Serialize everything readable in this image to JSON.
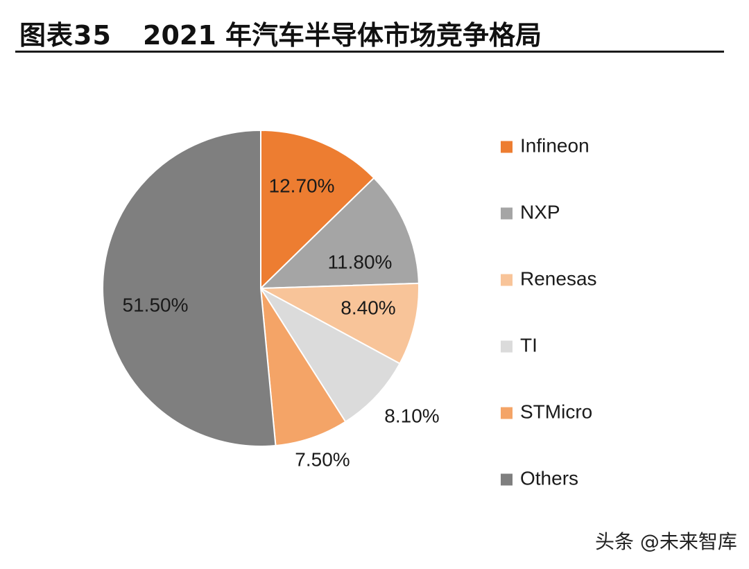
{
  "header": {
    "figure_number": "图表35",
    "title": "2021 年汽车半导体市场竞争格局"
  },
  "chart_data": {
    "type": "pie",
    "title": "2021 年汽车半导体市场竞争格局",
    "start_angle_deg": 0,
    "direction": "clockwise",
    "slices": [
      {
        "name": "Infineon",
        "value": 12.7,
        "label": "12.70%",
        "color": "#ED7D31"
      },
      {
        "name": "NXP",
        "value": 11.8,
        "label": "11.80%",
        "color": "#A5A5A5"
      },
      {
        "name": "Renesas",
        "value": 8.4,
        "label": "8.40%",
        "color": "#F8C499"
      },
      {
        "name": "TI",
        "value": 8.1,
        "label": "8.10%",
        "color": "#DBDBDB"
      },
      {
        "name": "STMicro",
        "value": 7.5,
        "label": "7.50%",
        "color": "#F4A467"
      },
      {
        "name": "Others",
        "value": 51.5,
        "label": "51.50%",
        "color": "#7F7F7F"
      }
    ],
    "legend_position": "right"
  },
  "watermark": {
    "text": "头条 @未来智库"
  }
}
